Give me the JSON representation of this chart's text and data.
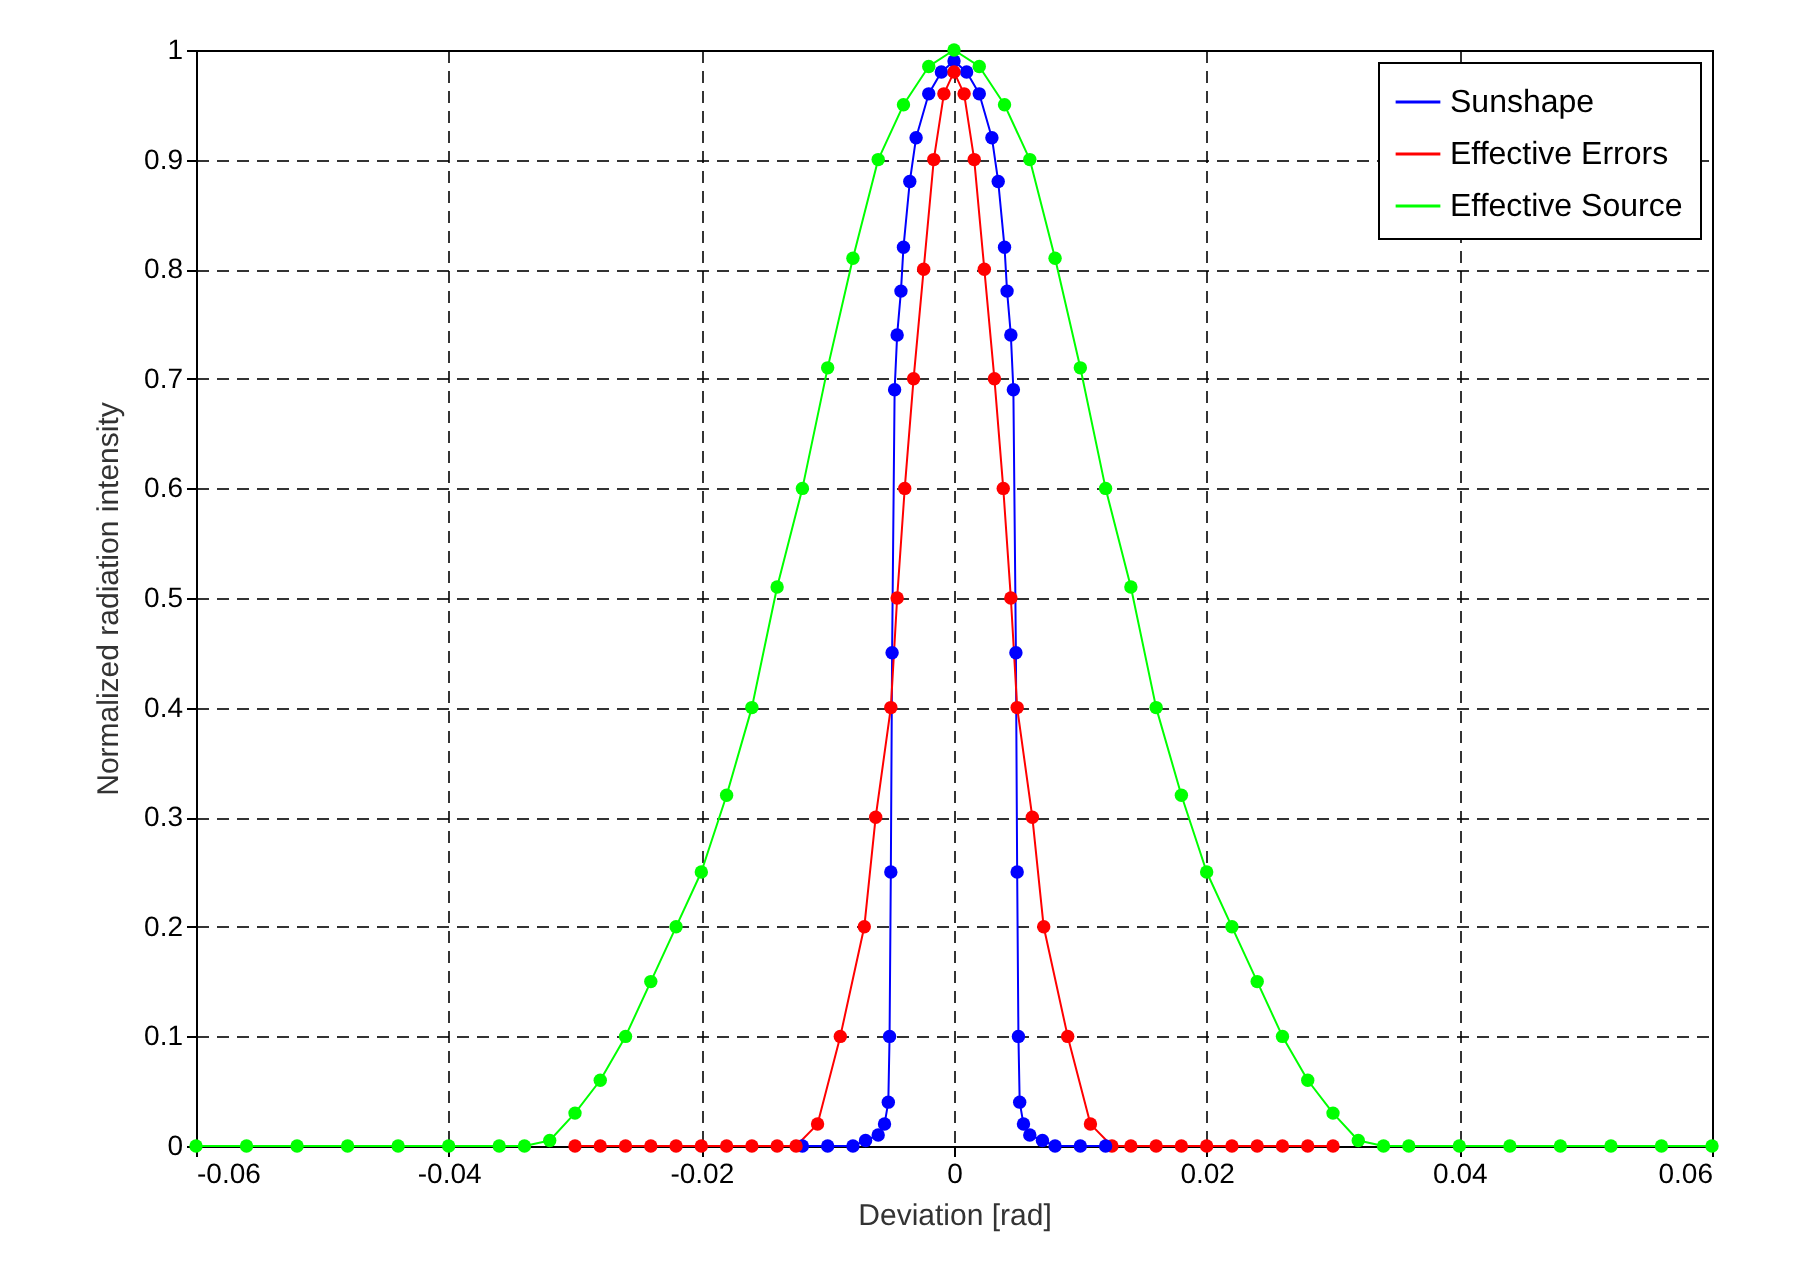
{
  "chart_data": {
    "type": "line",
    "xlabel": "Deviation [rad]",
    "ylabel": "Normalized radiation intensity",
    "xlim": [
      -0.06,
      0.06
    ],
    "ylim": [
      0,
      1
    ],
    "xticks": [
      -0.06,
      -0.04,
      -0.02,
      0,
      0.02,
      0.04,
      0.06
    ],
    "yticks": [
      0,
      0.1,
      0.2,
      0.3,
      0.4,
      0.5,
      0.6,
      0.7,
      0.8,
      0.9,
      1
    ],
    "grid": true,
    "legend": "top right",
    "marker": "circle",
    "line_style": "solid",
    "series": [
      {
        "name": "Sunshape",
        "color": "#0000ff",
        "x": [
          -0.012,
          -0.01,
          -0.008,
          -0.007,
          -0.006,
          -0.0055,
          -0.0052,
          -0.0051,
          -0.005,
          -0.0049,
          -0.0047,
          -0.0045,
          -0.0042,
          -0.004,
          -0.0035,
          -0.003,
          -0.002,
          -0.001,
          0,
          0.001,
          0.002,
          0.003,
          0.0035,
          0.004,
          0.0042,
          0.0045,
          0.0047,
          0.0049,
          0.005,
          0.0051,
          0.0052,
          0.0055,
          0.006,
          0.007,
          0.008,
          0.01,
          0.012
        ],
        "values": [
          0,
          0,
          0,
          0.005,
          0.01,
          0.02,
          0.04,
          0.1,
          0.25,
          0.45,
          0.69,
          0.74,
          0.78,
          0.82,
          0.88,
          0.92,
          0.96,
          0.98,
          0.99,
          0.98,
          0.96,
          0.92,
          0.88,
          0.82,
          0.78,
          0.74,
          0.69,
          0.45,
          0.25,
          0.1,
          0.04,
          0.02,
          0.01,
          0.005,
          0,
          0,
          0
        ]
      },
      {
        "name": "Effective Errors",
        "color": "#ff0000",
        "x": [
          -0.03,
          -0.028,
          -0.026,
          -0.024,
          -0.022,
          -0.02,
          -0.018,
          -0.016,
          -0.014,
          -0.0125,
          -0.0108,
          -0.009,
          -0.0071,
          -0.0062,
          -0.005,
          -0.0045,
          -0.0039,
          -0.0032,
          -0.0024,
          -0.0016,
          -0.0008,
          0,
          0.0008,
          0.0016,
          0.0024,
          0.0032,
          0.0039,
          0.0045,
          0.005,
          0.0062,
          0.0071,
          0.009,
          0.0108,
          0.0125,
          0.014,
          0.016,
          0.018,
          0.02,
          0.022,
          0.024,
          0.026,
          0.028,
          0.03
        ],
        "values": [
          0,
          0,
          0,
          0,
          0,
          0,
          0,
          0,
          0,
          0,
          0.02,
          0.1,
          0.2,
          0.3,
          0.4,
          0.5,
          0.6,
          0.7,
          0.8,
          0.9,
          0.96,
          0.98,
          0.96,
          0.9,
          0.8,
          0.7,
          0.6,
          0.5,
          0.4,
          0.3,
          0.2,
          0.1,
          0.02,
          0,
          0,
          0,
          0,
          0,
          0,
          0,
          0,
          0,
          0
        ]
      },
      {
        "name": "Effective Source",
        "color": "#00ff00",
        "x": [
          -0.06,
          -0.056,
          -0.052,
          -0.048,
          -0.044,
          -0.04,
          -0.036,
          -0.034,
          -0.032,
          -0.03,
          -0.028,
          -0.026,
          -0.024,
          -0.022,
          -0.02,
          -0.018,
          -0.016,
          -0.014,
          -0.012,
          -0.01,
          -0.008,
          -0.006,
          -0.004,
          -0.002,
          0,
          0.002,
          0.004,
          0.006,
          0.008,
          0.01,
          0.012,
          0.014,
          0.016,
          0.018,
          0.02,
          0.022,
          0.024,
          0.026,
          0.028,
          0.03,
          0.032,
          0.034,
          0.036,
          0.04,
          0.044,
          0.048,
          0.052,
          0.056,
          0.06
        ],
        "values": [
          0,
          0,
          0,
          0,
          0,
          0,
          0,
          0,
          0.005,
          0.03,
          0.06,
          0.1,
          0.15,
          0.2,
          0.25,
          0.32,
          0.4,
          0.51,
          0.6,
          0.71,
          0.81,
          0.9,
          0.95,
          0.985,
          1,
          0.985,
          0.95,
          0.9,
          0.81,
          0.71,
          0.6,
          0.51,
          0.4,
          0.32,
          0.25,
          0.2,
          0.15,
          0.1,
          0.06,
          0.03,
          0.005,
          0,
          0,
          0,
          0,
          0,
          0,
          0,
          0
        ]
      }
    ]
  }
}
